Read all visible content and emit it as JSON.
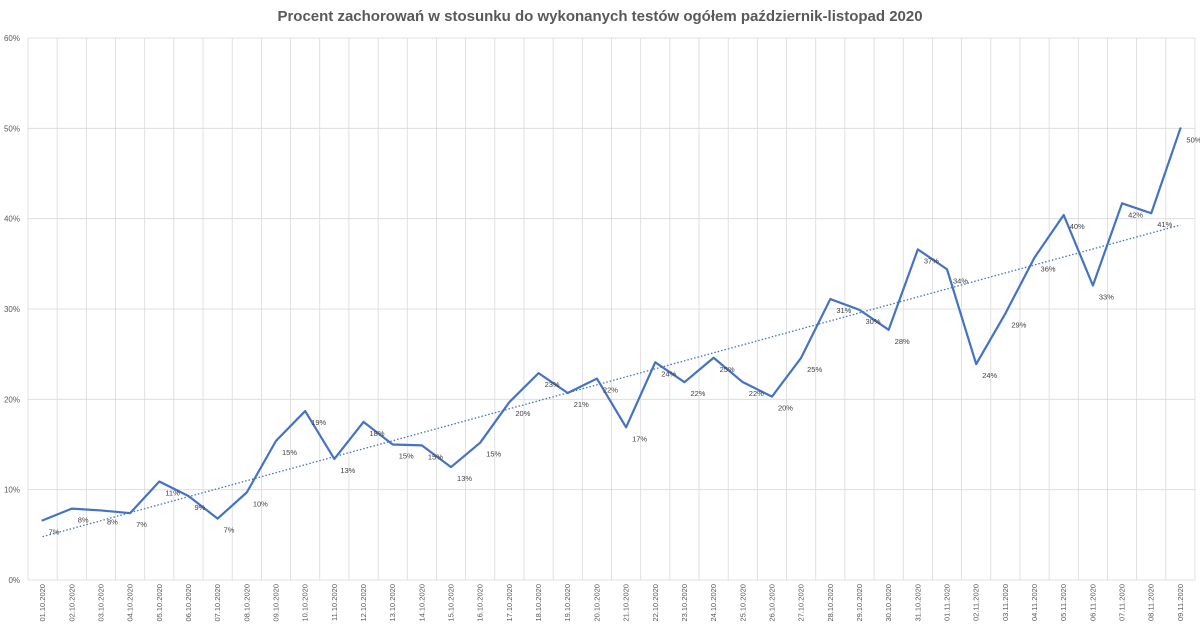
{
  "chart_data": {
    "type": "line",
    "title": "Procent zachorowań w stosunku do wykonanych testów ogółem październik-listopad 2020",
    "xlabel": "",
    "ylabel": "",
    "ylim": [
      0,
      60
    ],
    "yticks": [
      0,
      10,
      20,
      30,
      40,
      50,
      60
    ],
    "ytick_labels": [
      "0%",
      "10%",
      "20%",
      "30%",
      "40%",
      "50%",
      "60%"
    ],
    "grid": "on",
    "legend": "none",
    "colors": {
      "line": "#4472C4",
      "trend": "#4472C4",
      "grid": "#D9D9D9"
    },
    "categories": [
      "01.10.2020",
      "02.10.2020",
      "03.10.2020",
      "04.10.2020",
      "05.10.2020",
      "06.10.2020",
      "07.10.2020",
      "08.10.2020",
      "09.10.2020",
      "10.10.2020",
      "11.10.2020",
      "12.10.2020",
      "13.10.2020",
      "14.10.2020",
      "15.10.2020",
      "16.10.2020",
      "17.10.2020",
      "18.10.2020",
      "19.10.2020",
      "20.10.2020",
      "21.10.2020",
      "22.10.2020",
      "23.10.2020",
      "24.10.2020",
      "25.10.2020",
      "26.10.2020",
      "27.10.2020",
      "28.10.2020",
      "29.10.2020",
      "30.10.2020",
      "31.10.2020",
      "01.11.2020",
      "02.11.2020",
      "03.11.2020",
      "04.11.2020",
      "05.11.2020",
      "06.11.2020",
      "07.11.2020",
      "08.11.2020",
      "09.11.2020"
    ],
    "series": [
      {
        "values": [
          6.6,
          7.9,
          7.7,
          7.4,
          10.9,
          9.3,
          6.8,
          9.7,
          15.4,
          18.7,
          13.4,
          17.5,
          15.0,
          14.9,
          12.5,
          15.2,
          19.7,
          22.9,
          20.7,
          22.3,
          16.9,
          24.1,
          21.9,
          24.6,
          21.9,
          20.3,
          24.6,
          31.1,
          29.9,
          27.7,
          36.6,
          34.4,
          23.9,
          29.5,
          35.7,
          40.4,
          32.6,
          41.7,
          40.6,
          50.0
        ],
        "data_labels": [
          "7%",
          "8%",
          "8%",
          "7%",
          "11%",
          "9%",
          "7%",
          "10%",
          "15%",
          "19%",
          "13%",
          "18%",
          "15%",
          "15%",
          "13%",
          "15%",
          "20%",
          "23%",
          "21%",
          "22%",
          "17%",
          "24%",
          "22%",
          "25%",
          "22%",
          "20%",
          "25%",
          "31%",
          "30%",
          "28%",
          "37%",
          "34%",
          "24%",
          "29%",
          "36%",
          "40%",
          "33%",
          "42%",
          "41%",
          "50%"
        ]
      }
    ],
    "trendline": {
      "type": "linear",
      "start": 4.8,
      "end": 39.3
    }
  }
}
